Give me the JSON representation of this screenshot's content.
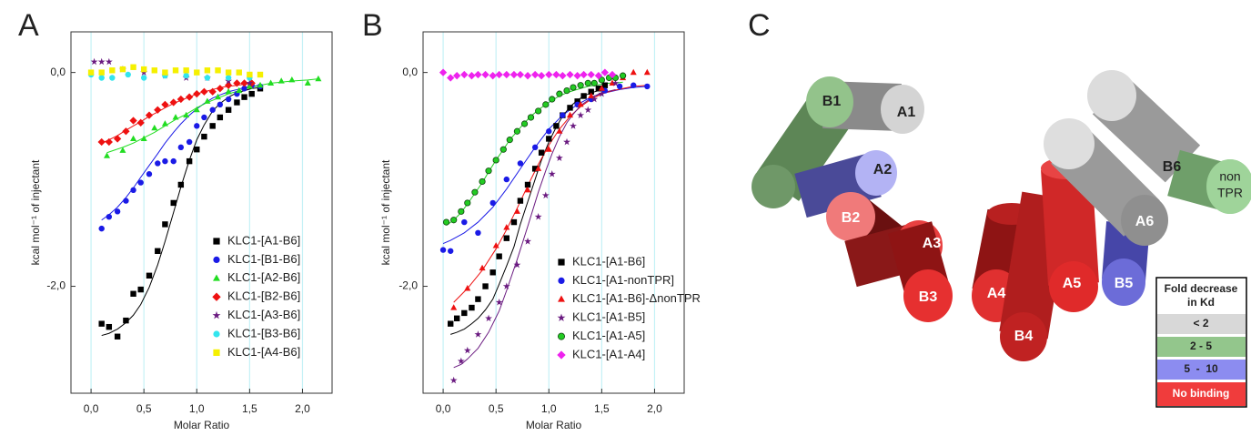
{
  "chart_data": [
    {
      "type": "scatter",
      "panel_label": "A",
      "x_label": "Molar Ratio",
      "y_label": "kcal mol⁻¹ of injectant",
      "xlim": [
        -0.19,
        2.28
      ],
      "ylim": [
        -3.0,
        0.38
      ],
      "xticks": [
        {
          "value": 0,
          "label": "0,0"
        },
        {
          "value": 0.5,
          "label": "0,5"
        },
        {
          "value": 1,
          "label": "1,0"
        },
        {
          "value": 1.5,
          "label": "1,5"
        },
        {
          "value": 2,
          "label": "2,0"
        }
      ],
      "yticks": [
        {
          "value": 0,
          "label": "0,0"
        },
        {
          "value": -2,
          "label": "-2,0"
        }
      ],
      "grid": "x",
      "grid_color": "#c4f1f6",
      "legend": "lower right",
      "series": [
        {
          "name": "KLC1-[A1-B6]",
          "color": "#000000",
          "marker": "square",
          "x": [
            0.1,
            0.17,
            0.25,
            0.33,
            0.4,
            0.47,
            0.55,
            0.63,
            0.7,
            0.78,
            0.85,
            0.93,
            1.0,
            1.07,
            1.15,
            1.22,
            1.3,
            1.38,
            1.45,
            1.52,
            1.6
          ],
          "values": [
            -2.35,
            -2.38,
            -2.47,
            -2.32,
            -2.07,
            -2.03,
            -1.9,
            -1.67,
            -1.42,
            -1.22,
            -1.05,
            -0.83,
            -0.72,
            -0.6,
            -0.5,
            -0.42,
            -0.35,
            -0.28,
            -0.23,
            -0.2,
            -0.15
          ],
          "fit_values": [
            -2.46,
            -2.44,
            -2.4,
            -2.34,
            -2.27,
            -2.17,
            -2.01,
            -1.8,
            -1.58,
            -1.31,
            -1.07,
            -0.82,
            -0.63,
            -0.49,
            -0.36,
            -0.29,
            -0.23,
            -0.19,
            -0.17,
            -0.15,
            -0.14
          ]
        },
        {
          "name": "KLC1-[B1-B6]",
          "color": "#1a1ae6",
          "marker": "circle",
          "x": [
            0.1,
            0.17,
            0.25,
            0.33,
            0.4,
            0.47,
            0.55,
            0.63,
            0.7,
            0.78,
            0.85,
            0.93,
            1.0,
            1.07,
            1.15,
            1.22,
            1.3,
            1.38,
            1.45,
            1.52,
            1.6
          ],
          "values": [
            -1.46,
            -1.35,
            -1.3,
            -1.2,
            -1.1,
            -1.03,
            -0.95,
            -0.85,
            -0.83,
            -0.83,
            -0.7,
            -0.65,
            -0.5,
            -0.42,
            -0.35,
            -0.3,
            -0.25,
            -0.2,
            -0.15,
            -0.12,
            -0.13
          ],
          "fit_values": [
            -1.38,
            -1.33,
            -1.26,
            -1.17,
            -1.08,
            -0.98,
            -0.87,
            -0.76,
            -0.66,
            -0.56,
            -0.48,
            -0.4,
            -0.34,
            -0.29,
            -0.24,
            -0.21,
            -0.18,
            -0.16,
            -0.14,
            -0.13,
            -0.12
          ]
        },
        {
          "name": "KLC1-[A2-B6]",
          "color": "#22dd22",
          "marker": "triangle",
          "x": [
            0.15,
            0.3,
            0.4,
            0.5,
            0.6,
            0.7,
            0.8,
            0.9,
            1.0,
            1.1,
            1.2,
            1.3,
            1.4,
            1.5,
            1.6,
            1.7,
            1.8,
            1.9,
            2.05,
            2.15
          ],
          "values": [
            -0.78,
            -0.73,
            -0.62,
            -0.62,
            -0.52,
            -0.48,
            -0.42,
            -0.4,
            -0.35,
            -0.27,
            -0.23,
            -0.18,
            -0.17,
            -0.13,
            -0.12,
            -0.1,
            -0.08,
            -0.07,
            -0.1,
            -0.06
          ],
          "fit_values": [
            -0.75,
            -0.7,
            -0.66,
            -0.61,
            -0.56,
            -0.5,
            -0.44,
            -0.39,
            -0.33,
            -0.28,
            -0.24,
            -0.2,
            -0.17,
            -0.14,
            -0.12,
            -0.1,
            -0.09,
            -0.08,
            -0.07,
            -0.06
          ]
        },
        {
          "name": "KLC1-[B2-B6]",
          "color": "#ee1111",
          "marker": "diamond",
          "x": [
            0.1,
            0.17,
            0.25,
            0.33,
            0.4,
            0.47,
            0.55,
            0.63,
            0.7,
            0.78,
            0.85,
            0.93,
            1.0,
            1.07,
            1.15,
            1.22,
            1.3,
            1.38,
            1.45,
            1.52
          ],
          "values": [
            -0.65,
            -0.65,
            -0.62,
            -0.55,
            -0.45,
            -0.47,
            -0.4,
            -0.35,
            -0.3,
            -0.28,
            -0.25,
            -0.23,
            -0.2,
            -0.18,
            -0.18,
            -0.15,
            -0.12,
            -0.1,
            -0.1,
            -0.1
          ],
          "fit_values": [
            -0.66,
            -0.63,
            -0.59,
            -0.54,
            -0.5,
            -0.46,
            -0.41,
            -0.37,
            -0.33,
            -0.29,
            -0.26,
            -0.23,
            -0.2,
            -0.18,
            -0.16,
            -0.14,
            -0.13,
            -0.12,
            -0.11,
            -0.1
          ]
        },
        {
          "name": "KLC1-[A3-B6]",
          "color": "#6a1a80",
          "marker": "star",
          "x": [
            0.03,
            0.1,
            0.17,
            0.3,
            0.5,
            0.7,
            0.9,
            1.1,
            1.3,
            1.5
          ],
          "values": [
            0.1,
            0.1,
            0.1,
            0.03,
            0.0,
            -0.03,
            -0.05,
            -0.05,
            -0.08,
            -0.1
          ]
        },
        {
          "name": "KLC1-[B3-B6]",
          "color": "#33e5ee",
          "marker": "circle",
          "x": [
            0.0,
            0.1,
            0.2,
            0.35,
            0.5,
            0.7,
            0.9,
            1.1,
            1.3,
            1.5
          ],
          "values": [
            -0.02,
            -0.05,
            -0.05,
            -0.02,
            -0.05,
            -0.03,
            -0.03,
            -0.05,
            -0.05,
            -0.05
          ]
        },
        {
          "name": "KLC1-[A4-B6]",
          "color": "#f5f000",
          "marker": "square",
          "x": [
            0.0,
            0.1,
            0.2,
            0.3,
            0.4,
            0.5,
            0.6,
            0.7,
            0.8,
            0.9,
            1.0,
            1.1,
            1.2,
            1.3,
            1.4,
            1.5,
            1.6
          ],
          "values": [
            0.0,
            0.0,
            0.02,
            0.03,
            0.05,
            0.03,
            0.02,
            0.0,
            0.02,
            0.02,
            0.0,
            0.02,
            0.02,
            0.0,
            0.0,
            -0.02,
            -0.02
          ]
        }
      ]
    },
    {
      "type": "scatter",
      "panel_label": "B",
      "x_label": "Molar Ratio",
      "y_label": "kcal mol⁻¹ of injectant",
      "xlim": [
        -0.19,
        2.28
      ],
      "ylim": [
        -3.0,
        0.38
      ],
      "xticks": [
        {
          "value": 0,
          "label": "0,0"
        },
        {
          "value": 0.5,
          "label": "0,5"
        },
        {
          "value": 1,
          "label": "1,0"
        },
        {
          "value": 1.5,
          "label": "1,5"
        },
        {
          "value": 2,
          "label": "2,0"
        }
      ],
      "yticks": [
        {
          "value": 0,
          "label": "0,0"
        },
        {
          "value": -2,
          "label": "-2,0"
        }
      ],
      "grid": "x",
      "grid_color": "#c4f1f6",
      "legend": "lower right",
      "series": [
        {
          "name": "KLC1-[A1-B6]",
          "color": "#000000",
          "marker": "square",
          "x": [
            0.07,
            0.13,
            0.2,
            0.27,
            0.33,
            0.4,
            0.47,
            0.53,
            0.6,
            0.67,
            0.73,
            0.8,
            0.87,
            0.93,
            1.0,
            1.07,
            1.13,
            1.2,
            1.27,
            1.33,
            1.4,
            1.47,
            1.53
          ],
          "values": [
            -2.35,
            -2.3,
            -2.25,
            -2.2,
            -2.12,
            -2.0,
            -1.87,
            -1.72,
            -1.55,
            -1.4,
            -1.2,
            -1.05,
            -0.9,
            -0.75,
            -0.62,
            -0.5,
            -0.4,
            -0.33,
            -0.27,
            -0.22,
            -0.18,
            -0.15,
            -0.12
          ],
          "fit_values": [
            -2.45,
            -2.43,
            -2.4,
            -2.35,
            -2.3,
            -2.22,
            -2.12,
            -1.98,
            -1.81,
            -1.63,
            -1.42,
            -1.21,
            -1.0,
            -0.82,
            -0.65,
            -0.51,
            -0.41,
            -0.32,
            -0.26,
            -0.22,
            -0.19,
            -0.17,
            -0.15
          ]
        },
        {
          "name": "KLC1-[A1-nonTPR]",
          "color": "#1a1ae6",
          "marker": "circle",
          "x": [
            0.0,
            0.07,
            0.2,
            0.33,
            0.47,
            0.6,
            0.73,
            0.87,
            1.0,
            1.13,
            1.27,
            1.4,
            1.53,
            1.67,
            1.8,
            1.93
          ],
          "values": [
            -1.66,
            -1.67,
            -1.4,
            -1.5,
            -1.22,
            -1.0,
            -0.85,
            -0.7,
            -0.55,
            -0.4,
            -0.3,
            -0.25,
            -0.17,
            -0.13,
            -0.12,
            -0.13
          ],
          "fit_values": [
            -1.6,
            -1.57,
            -1.5,
            -1.4,
            -1.26,
            -1.09,
            -0.9,
            -0.7,
            -0.53,
            -0.4,
            -0.3,
            -0.23,
            -0.19,
            -0.16,
            -0.14,
            -0.13
          ]
        },
        {
          "name": "KLC1-[A1-B6]-ΔnonTPR",
          "color": "#ee1111",
          "marker": "triangle",
          "x": [
            0.1,
            0.23,
            0.37,
            0.5,
            0.6,
            0.7,
            0.8,
            0.9,
            1.0,
            1.1,
            1.2,
            1.3,
            1.4,
            1.5,
            1.6,
            1.7,
            1.8,
            1.93
          ],
          "values": [
            -2.2,
            -2.02,
            -1.83,
            -1.62,
            -1.45,
            -1.3,
            -1.1,
            -0.9,
            -0.72,
            -0.55,
            -0.4,
            -0.3,
            -0.22,
            -0.15,
            -0.1,
            -0.05,
            0.0,
            0.0
          ],
          "fit_values": [
            -2.15,
            -2.02,
            -1.85,
            -1.65,
            -1.47,
            -1.27,
            -1.06,
            -0.86,
            -0.68,
            -0.53,
            -0.41,
            -0.32,
            -0.25,
            -0.2,
            -0.17,
            -0.15,
            -0.13,
            -0.12
          ]
        },
        {
          "name": "KLC1-[A1-B5]",
          "color": "#6a1a80",
          "marker": "star",
          "x": [
            0.1,
            0.17,
            0.23,
            0.33,
            0.43,
            0.53,
            0.6,
            0.7,
            0.8,
            0.9,
            0.97,
            1.03,
            1.1,
            1.17,
            1.23,
            1.3,
            1.37,
            1.43,
            1.5,
            1.63
          ],
          "values": [
            -2.88,
            -2.7,
            -2.6,
            -2.45,
            -2.3,
            -2.15,
            -2.0,
            -1.8,
            -1.58,
            -1.35,
            -1.15,
            -0.95,
            -0.8,
            -0.65,
            -0.5,
            -0.4,
            -0.35,
            -0.25,
            -0.2,
            -0.1
          ],
          "fit_values": [
            -2.76,
            -2.73,
            -2.68,
            -2.58,
            -2.43,
            -2.23,
            -2.04,
            -1.75,
            -1.44,
            -1.12,
            -0.92,
            -0.76,
            -0.6,
            -0.47,
            -0.39,
            -0.31,
            -0.26,
            -0.22,
            -0.19,
            -0.16
          ]
        },
        {
          "name": "KLC1-[A1-A5]",
          "color": "#22cc22",
          "marker": "circle-outline",
          "x": [
            0.03,
            0.1,
            0.17,
            0.23,
            0.3,
            0.37,
            0.43,
            0.5,
            0.57,
            0.63,
            0.7,
            0.77,
            0.83,
            0.9,
            0.97,
            1.03,
            1.1,
            1.17,
            1.23,
            1.3,
            1.37,
            1.43,
            1.5,
            1.57,
            1.63,
            1.7
          ],
          "values": [
            -1.4,
            -1.38,
            -1.3,
            -1.22,
            -1.12,
            -1.02,
            -0.92,
            -0.82,
            -0.72,
            -0.63,
            -0.55,
            -0.48,
            -0.42,
            -0.36,
            -0.3,
            -0.25,
            -0.2,
            -0.17,
            -0.14,
            -0.12,
            -0.1,
            -0.1,
            -0.07,
            -0.05,
            -0.05,
            -0.03
          ],
          "fit_values": [
            -1.43,
            -1.38,
            -1.31,
            -1.23,
            -1.13,
            -1.03,
            -0.93,
            -0.82,
            -0.72,
            -0.63,
            -0.55,
            -0.47,
            -0.41,
            -0.35,
            -0.3,
            -0.26,
            -0.22,
            -0.19,
            -0.17,
            -0.15,
            -0.13,
            -0.12,
            -0.11,
            -0.1,
            -0.1,
            -0.09
          ]
        },
        {
          "name": "KLC1-[A1-A4]",
          "color": "#ee22ee",
          "marker": "diamond",
          "x": [
            0.0,
            0.07,
            0.13,
            0.2,
            0.27,
            0.33,
            0.4,
            0.47,
            0.53,
            0.6,
            0.67,
            0.73,
            0.8,
            0.87,
            0.93,
            1.0,
            1.07,
            1.13,
            1.2,
            1.27,
            1.33,
            1.4,
            1.47,
            1.53,
            1.6
          ],
          "values": [
            0.0,
            -0.05,
            -0.03,
            -0.02,
            -0.03,
            -0.02,
            -0.02,
            -0.03,
            -0.02,
            -0.02,
            -0.02,
            -0.02,
            -0.03,
            -0.02,
            -0.03,
            -0.02,
            -0.02,
            -0.03,
            -0.02,
            -0.03,
            -0.02,
            -0.02,
            -0.03,
            0.0,
            -0.02
          ]
        }
      ]
    }
  ],
  "diagram": {
    "panel_label": "C",
    "helices": {
      "B1": "B1",
      "A1": "A1",
      "A2": "A2",
      "B2": "B2",
      "A3": "A3",
      "B3": "B3",
      "A4": "A4",
      "B4": "B4",
      "A5": "A5",
      "B5": "B5",
      "A6": "A6",
      "B6": "B6",
      "nonTPR": [
        "non",
        "TPR"
      ]
    },
    "legend": {
      "title": [
        "Fold decrease",
        "in Kd"
      ],
      "rows": [
        "< 2",
        "2 - 5",
        "5  -  10",
        "No binding"
      ]
    }
  }
}
